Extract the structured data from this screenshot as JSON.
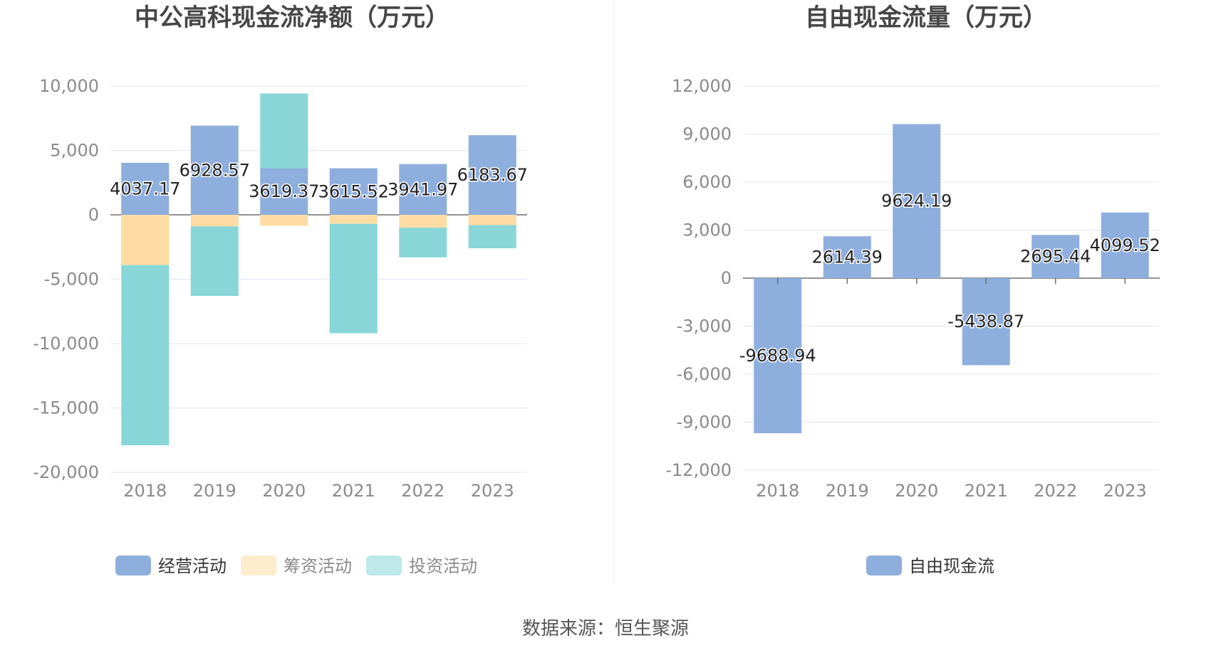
{
  "colors": {
    "operating": "#8eaedd",
    "financing": "#fedca3",
    "investing": "#88d6d8",
    "free_cash_flow": "#8eaedd"
  },
  "source": "数据来源：恒生聚源",
  "chart_data": [
    {
      "type": "bar",
      "stacked": true,
      "title": "中公高科现金流净额（万元）",
      "categories": [
        "2018",
        "2019",
        "2020",
        "2021",
        "2022",
        "2023"
      ],
      "ylim": [
        -20000,
        10000
      ],
      "yticks": [
        10000,
        5000,
        0,
        -5000,
        -10000,
        -15000,
        -20000
      ],
      "ytick_labels": [
        "10,000",
        "5,000",
        "0",
        "-5,000",
        "-10,000",
        "-15,000",
        "-20,000"
      ],
      "grid": true,
      "legend_position": "bottom",
      "series": [
        {
          "name": "经营活动",
          "color_key": "operating",
          "values": [
            4037.17,
            6928.57,
            3619.37,
            3615.52,
            3941.97,
            6183.67
          ],
          "labels": [
            "4037.17",
            "6928.57",
            "3619.37",
            "3615.52",
            "3941.97",
            "6183.67"
          ]
        },
        {
          "name": "筹资活动",
          "color_key": "financing",
          "values": [
            -3900,
            -900,
            -850,
            -700,
            -1000,
            -800
          ]
        },
        {
          "name": "投资活动",
          "color_key": "investing",
          "values": [
            -14000,
            -5400,
            5800,
            -8500,
            -2300,
            -1800
          ]
        }
      ]
    },
    {
      "type": "bar",
      "title": "自由现金流量（万元）",
      "categories": [
        "2018",
        "2019",
        "2020",
        "2021",
        "2022",
        "2023"
      ],
      "ylim": [
        -12000,
        12000
      ],
      "yticks": [
        12000,
        9000,
        6000,
        3000,
        0,
        -3000,
        -6000,
        -9000,
        -12000
      ],
      "ytick_labels": [
        "12,000",
        "9,000",
        "6,000",
        "3,000",
        "0",
        "-3,000",
        "-6,000",
        "-9,000",
        "-12,000"
      ],
      "grid": true,
      "legend_position": "bottom",
      "series": [
        {
          "name": "自由现金流",
          "color_key": "free_cash_flow",
          "values": [
            -9688.94,
            2614.39,
            9624.19,
            -5438.87,
            2695.44,
            4099.52
          ],
          "labels": [
            "-9688.94",
            "2614.39",
            "9624.19",
            "-5438.87",
            "2695.44",
            "4099.52"
          ]
        }
      ]
    }
  ]
}
